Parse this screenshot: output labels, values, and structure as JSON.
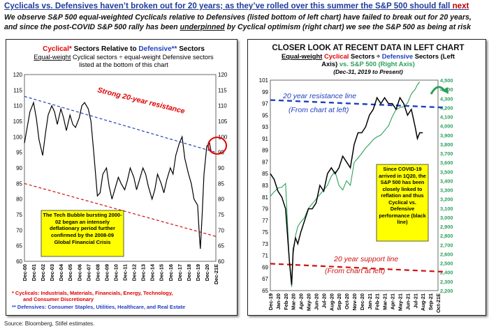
{
  "header": {
    "title_main": "Cyclicals vs. Defensives haven’t broken out for 20 years; as they’ve rolled over this summer the S&P 500 should fall",
    "title_emph": "next",
    "subtitle_line1": "We observe S&P 500 equal-weighted Cyclicals relative to Defensives (listed bottom of left chart) have failed to break out for 20 years,",
    "subtitle_line2_a": "and since the post-COVID S&P 500 rally has been",
    "subtitle_line2_b": "underpinned",
    "subtitle_line2_c": "by Cyclical optimism (right chart) we see the S&P 500 as being at risk"
  },
  "source": "Source: Bloomberg, Stifel estimates.",
  "left_chart": {
    "title_cyc": "Cyclical*",
    "title_mid": "Sectors Relative to",
    "title_def": "Defensive**",
    "title_end": "Sectors",
    "sub1_a": "Equal-weight",
    "sub1_b": "Cyclical sectors ÷ equal-weight Defensive sectors",
    "sub2": "listed at the bottom of this chart",
    "resistance_label": "Strong 20-year resistance",
    "callout": "The Tech Bubble bursting 2000-02 began an intensely deflationary period further confirmed by the 2008-09 Global Financial Crisis",
    "footnote1_a": "* Cyclicals:",
    "footnote1_b": "Industrials, Materials, Financials, Energy, Technology,",
    "footnote1_c": "and Consumer Discretionary",
    "footnote2_a": "** Defensives:",
    "footnote2_b": "Consumer Staples, Utilities, Healthcare, and Real Estate"
  },
  "right_chart": {
    "title": "CLOSER LOOK AT RECENT DATA IN LEFT CHART",
    "sub1_a": "Equal-weight",
    "sub1_b": "Cyclical",
    "sub1_c": "Sectors ÷",
    "sub1_d": "Defensive",
    "sub1_e": "Sectors (Left",
    "sub2_a": "Axis)",
    "sub2_b": "vs.",
    "sub2_c": "S&P 500 (Right Axis)",
    "sub3": "(Dec-31, 2019 to Present)",
    "resistance_label1": "20 year resistance line",
    "resistance_label2": "(From chart at left)",
    "support_label1": "20 year support line",
    "support_label2": "(From chart at left)",
    "callout": "Since COVID-19 arrived in 1Q20, the S&P 500 has been closely linked to reflation and thus Cyclical vs. Defensive performance (black line)"
  },
  "colors": {
    "ratio_line": "#000000",
    "sp500_line": "#2ca05a",
    "resistance": "#1f3fbf",
    "support": "#d01010",
    "callout_bg": "#ffff00",
    "title_blue": "#1f3a9a",
    "cyclical_red": "#e00000",
    "defensive_blue": "#1f3fbf"
  },
  "chart_data": [
    {
      "type": "line",
      "id": "left",
      "ylim": [
        60,
        120
      ],
      "yticks": [
        60,
        65,
        70,
        75,
        80,
        85,
        90,
        95,
        100,
        105,
        110,
        115,
        120
      ],
      "categories": [
        "Dec-00",
        "Dec-01",
        "Dec-02",
        "Dec-03",
        "Dec-04",
        "Dec-05",
        "Dec-06",
        "Dec-07",
        "Dec-08",
        "Dec-09",
        "Dec-10",
        "Dec-11",
        "Dec-12",
        "Dec-13",
        "Dec-14",
        "Dec-15",
        "Dec-16",
        "Dec-17",
        "Dec-18",
        "Dec-19",
        "Dec-20",
        "Dec-21E"
      ],
      "series": [
        {
          "x": [
            0,
            0.3,
            0.6,
            1,
            1.3,
            1.6,
            2,
            2.3,
            2.6,
            3,
            3.3,
            3.6,
            4,
            4.3,
            4.6,
            5,
            5.3,
            5.6,
            6,
            6.3,
            6.6,
            7,
            7.3,
            7.6,
            8,
            8.3,
            8.6,
            9,
            9.3,
            9.6,
            10,
            10.3,
            10.6,
            11,
            11.3,
            11.6,
            12,
            12.3,
            12.6,
            13,
            13.3,
            13.6,
            14,
            14.3,
            14.6,
            15,
            15.3,
            15.6,
            16,
            16.3,
            16.6,
            17,
            17.3,
            17.6,
            18,
            18.3,
            18.6,
            19,
            19.2,
            19.3,
            19.5,
            19.7,
            20,
            20.3,
            20.5
          ],
          "values": [
            98,
            103,
            108,
            111,
            106,
            99,
            94,
            101,
            107,
            110,
            108,
            104,
            109,
            106,
            102,
            107,
            104,
            103,
            106,
            110,
            111,
            109,
            105,
            95,
            81,
            82,
            88,
            90,
            84,
            80,
            84,
            87,
            85,
            83,
            86,
            90,
            87,
            83,
            86,
            90,
            88,
            84,
            80,
            83,
            88,
            85,
            82,
            86,
            90,
            88,
            94,
            98,
            100,
            93,
            88,
            85,
            80,
            78,
            68,
            64,
            75,
            88,
            97,
            98,
            95
          ]
        }
      ],
      "resistance": {
        "x": [
          0,
          21
        ],
        "values": [
          113,
          95
        ]
      },
      "support": {
        "x": [
          0,
          21
        ],
        "values": [
          85,
          68
        ]
      }
    },
    {
      "type": "line",
      "id": "right",
      "ylim": [
        65,
        101
      ],
      "yticks": [
        65,
        67,
        69,
        71,
        73,
        75,
        77,
        79,
        81,
        83,
        85,
        87,
        89,
        91,
        93,
        95,
        97,
        99,
        101
      ],
      "y2lim": [
        2200,
        4500
      ],
      "y2ticks": [
        2200,
        2300,
        2400,
        2500,
        2600,
        2700,
        2800,
        2900,
        3000,
        3100,
        3200,
        3300,
        3400,
        3500,
        3600,
        3700,
        3800,
        3900,
        4000,
        4100,
        4200,
        4300,
        4400,
        4500
      ],
      "categories": [
        "Dec-19",
        "Jan-20",
        "Feb-20",
        "Mar-20",
        "Apr-20",
        "May-20",
        "Jun-20",
        "Jul-20",
        "Aug-20",
        "Sep-20",
        "Oct-20",
        "Nov-20",
        "Dec-20",
        "Jan-21",
        "Feb-21",
        "Mar-21",
        "Apr-21",
        "May-21",
        "Jun-21",
        "Jul-21",
        "Aug-21",
        "Sep-21",
        "Oct-21E"
      ],
      "series": [
        {
          "name": "Equal-weight Cyclical Sectors ÷ Defensive Sectors",
          "x": [
            0,
            0.5,
            1,
            1.5,
            2,
            2.5,
            2.8,
            3,
            3.3,
            3.6,
            4,
            4.5,
            5,
            5.5,
            6,
            6.5,
            7,
            7.5,
            8,
            8.5,
            9,
            9.5,
            10,
            10.5,
            11,
            11.5,
            12,
            12.5,
            13,
            13.5,
            14,
            14.5,
            15,
            15.5,
            16,
            16.5,
            17,
            17.5,
            18,
            18.5,
            19,
            19.3,
            19.6,
            20
          ],
          "values": [
            85,
            84,
            82,
            81,
            79,
            70,
            66,
            72,
            74,
            73,
            75,
            77,
            79,
            79,
            80,
            83,
            82,
            85,
            86,
            85,
            86,
            88,
            87,
            86,
            90,
            92,
            92,
            93,
            95,
            96,
            98,
            97,
            98,
            97,
            97,
            96,
            98,
            97,
            95,
            96,
            93,
            91,
            92,
            92
          ]
        },
        {
          "name": "S&P 500",
          "axis": "right",
          "x": [
            0,
            0.5,
            1,
            1.5,
            2,
            2.5,
            2.8,
            3,
            3.3,
            3.6,
            4,
            4.5,
            5,
            5.5,
            6,
            6.5,
            7,
            7.5,
            8,
            8.5,
            9,
            9.5,
            10,
            10.5,
            11,
            11.5,
            12,
            12.5,
            13,
            13.5,
            14,
            14.5,
            15,
            15.5,
            16,
            16.5,
            17,
            17.5,
            18,
            18.5,
            19,
            19.3,
            19.6
          ],
          "values": [
            3230,
            3280,
            3320,
            3330,
            3370,
            2500,
            2240,
            2600,
            2800,
            2900,
            2950,
            3000,
            3100,
            3150,
            3200,
            3250,
            3300,
            3350,
            3450,
            3500,
            3350,
            3300,
            3400,
            3350,
            3600,
            3650,
            3700,
            3760,
            3800,
            3850,
            3880,
            3900,
            3950,
            4000,
            4100,
            4180,
            4200,
            4210,
            4250,
            4350,
            4400,
            4450,
            4480
          ]
        }
      ],
      "resistance": {
        "x": [
          0,
          23
        ],
        "values": [
          97.6,
          96.3
        ]
      },
      "support": {
        "x": [
          0,
          23
        ],
        "values": [
          69.6,
          68.2
        ]
      }
    }
  ]
}
